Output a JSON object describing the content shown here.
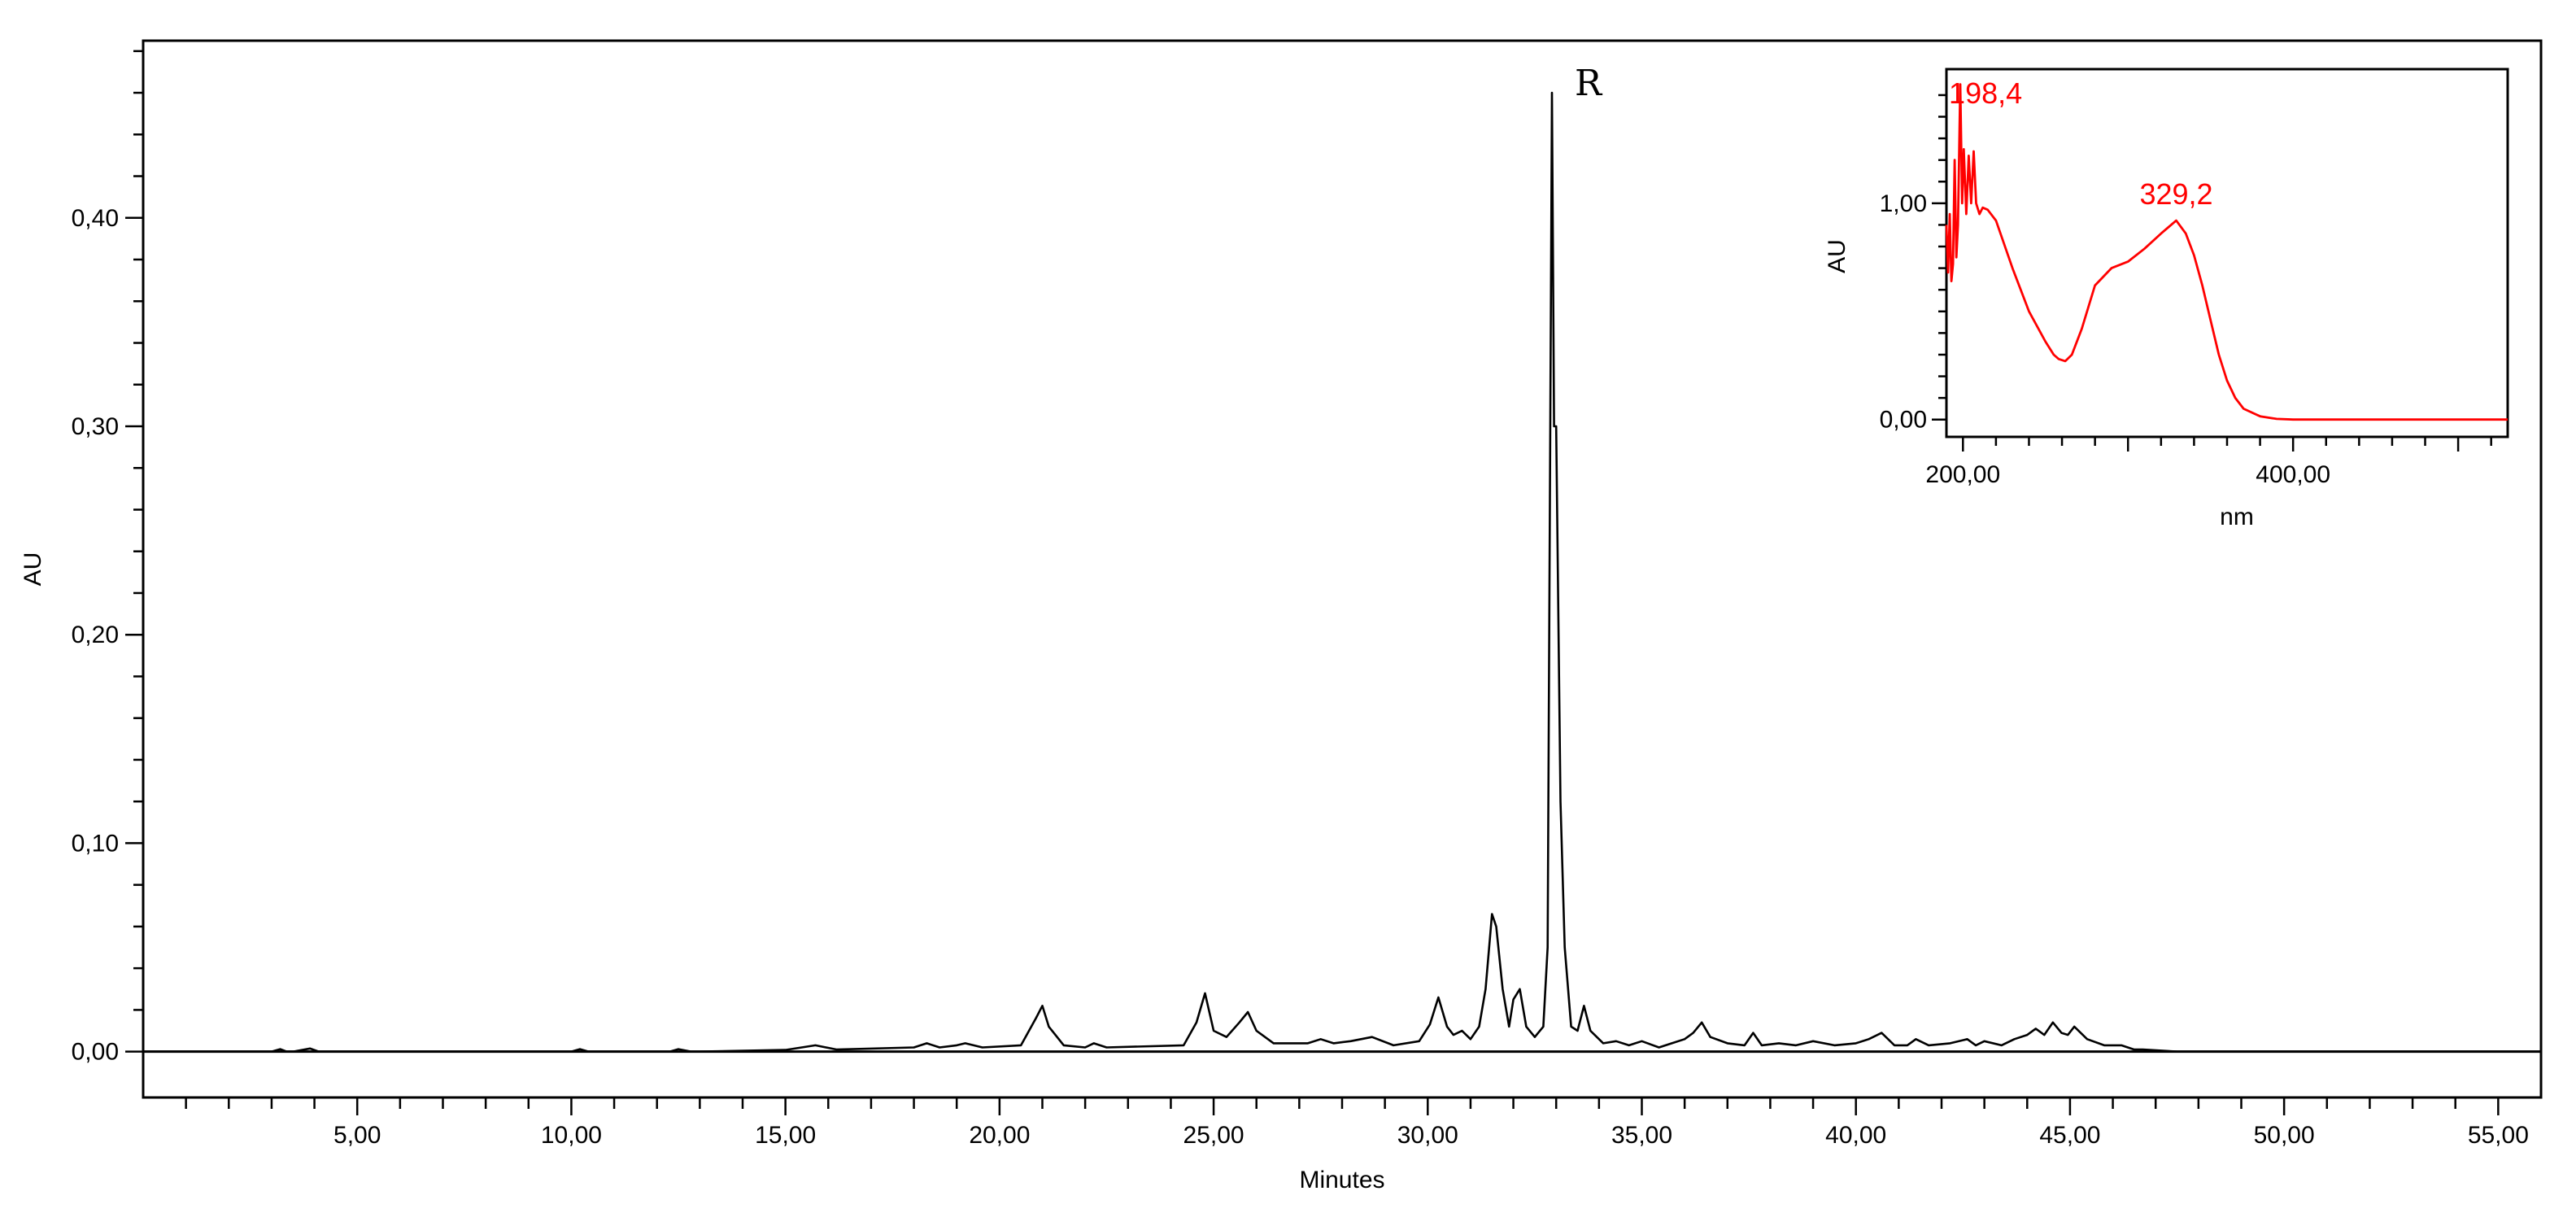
{
  "chart_data": [
    {
      "type": "line",
      "title": "",
      "xlabel": "Minutes",
      "ylabel": "AU",
      "xlim": [
        0,
        56.0
      ],
      "ylim": [
        -0.022,
        0.485
      ],
      "x_ticks": [
        "5,00",
        "10,00",
        "15,00",
        "20,00",
        "25,00",
        "30,00",
        "35,00",
        "40,00",
        "45,00",
        "50,00",
        "55,00"
      ],
      "x_tick_values": [
        5,
        10,
        15,
        20,
        25,
        30,
        35,
        40,
        45,
        50,
        55
      ],
      "y_ticks": [
        "0,00",
        "0,10",
        "0,20",
        "0,30",
        "0,40"
      ],
      "y_tick_values": [
        0.0,
        0.1,
        0.2,
        0.3,
        0.4
      ],
      "grid": false,
      "peak_annotation": {
        "label": "R",
        "x": 32.9,
        "y": 0.462
      },
      "series": [
        {
          "x": [
            0,
            3.0,
            3.2,
            3.35,
            3.5,
            3.9,
            4.1,
            4.3,
            10.0,
            10.2,
            10.4,
            12.3,
            12.5,
            12.8,
            13.0,
            15.0,
            15.7,
            16.2,
            18.0,
            18.3,
            18.6,
            19.0,
            19.2,
            19.6,
            20.5,
            20.85,
            21.0,
            21.15,
            21.5,
            22.0,
            22.2,
            22.5,
            24.3,
            24.6,
            24.8,
            25.0,
            25.3,
            25.6,
            25.8,
            26.0,
            26.4,
            27.2,
            27.5,
            27.8,
            28.2,
            28.7,
            29.2,
            29.8,
            30.05,
            30.25,
            30.45,
            30.6,
            30.8,
            31.0,
            31.2,
            31.35,
            31.5,
            31.6,
            31.75,
            31.9,
            32.0,
            32.15,
            32.3,
            32.5,
            32.7,
            32.8,
            32.85,
            32.9,
            32.95,
            33.0,
            33.1,
            33.2,
            33.35,
            33.5,
            33.65,
            33.8,
            34.1,
            34.4,
            34.7,
            35.0,
            35.4,
            35.7,
            36.0,
            36.2,
            36.4,
            36.6,
            37.0,
            37.4,
            37.6,
            37.8,
            38.2,
            38.6,
            39.0,
            39.5,
            40.0,
            40.3,
            40.6,
            40.9,
            41.2,
            41.4,
            41.7,
            42.2,
            42.6,
            42.8,
            43.0,
            43.4,
            43.7,
            44.0,
            44.2,
            44.4,
            44.6,
            44.8,
            44.95,
            45.1,
            45.4,
            45.8,
            46.2,
            46.5,
            46.7,
            47.5,
            56.0
          ],
          "y": [
            0.0,
            0.0,
            0.0012,
            0.0,
            0.0,
            0.0015,
            0.0,
            0.0,
            0.0,
            0.0012,
            0.0,
            0.0,
            0.0012,
            0.0,
            0.0,
            0.0008,
            0.003,
            0.001,
            0.002,
            0.004,
            0.002,
            0.003,
            0.004,
            0.002,
            0.003,
            0.016,
            0.022,
            0.012,
            0.003,
            0.002,
            0.004,
            0.002,
            0.003,
            0.014,
            0.028,
            0.01,
            0.007,
            0.014,
            0.019,
            0.01,
            0.004,
            0.004,
            0.006,
            0.004,
            0.005,
            0.007,
            0.003,
            0.005,
            0.013,
            0.026,
            0.012,
            0.008,
            0.01,
            0.006,
            0.012,
            0.03,
            0.066,
            0.06,
            0.03,
            0.012,
            0.025,
            0.03,
            0.012,
            0.007,
            0.012,
            0.05,
            0.25,
            0.46,
            0.3,
            0.3,
            0.12,
            0.05,
            0.012,
            0.01,
            0.022,
            0.01,
            0.004,
            0.005,
            0.003,
            0.005,
            0.002,
            0.004,
            0.006,
            0.009,
            0.014,
            0.007,
            0.004,
            0.003,
            0.009,
            0.003,
            0.004,
            0.003,
            0.005,
            0.003,
            0.004,
            0.006,
            0.009,
            0.003,
            0.003,
            0.006,
            0.003,
            0.004,
            0.006,
            0.003,
            0.005,
            0.003,
            0.006,
            0.008,
            0.011,
            0.008,
            0.014,
            0.009,
            0.008,
            0.012,
            0.006,
            0.003,
            0.003,
            0.001,
            0.001,
            0.0,
            0.0
          ]
        }
      ]
    },
    {
      "type": "line",
      "title": "",
      "xlabel": "nm",
      "ylabel": "AU",
      "xlim": [
        190,
        530
      ],
      "ylim": [
        -0.08,
        1.62
      ],
      "x_ticks": [
        "200,00",
        "400,00"
      ],
      "x_tick_values": [
        200,
        400
      ],
      "y_ticks": [
        "0,00",
        "1,00"
      ],
      "y_tick_values": [
        0.0,
        1.0
      ],
      "grid": false,
      "annotations": [
        {
          "label": "198,4",
          "x": 198.4
        },
        {
          "label": "329,2",
          "x": 329.2
        }
      ],
      "series": [
        {
          "x": [
            190,
            191,
            192,
            193,
            194,
            195,
            196,
            197,
            198.4,
            199.5,
            200.5,
            202,
            203.5,
            205,
            206.5,
            208,
            210,
            212,
            215,
            220,
            230,
            240,
            250,
            255,
            258,
            262,
            266,
            272,
            280,
            290,
            300,
            310,
            320,
            329.2,
            335,
            340,
            345,
            350,
            355,
            360,
            365,
            370,
            380,
            390,
            400,
            450,
            530
          ],
          "y": [
            0.9,
            0.68,
            0.95,
            0.64,
            0.72,
            1.2,
            0.75,
            0.9,
            1.55,
            1.0,
            1.25,
            0.95,
            1.22,
            1.0,
            1.24,
            1.0,
            0.95,
            0.98,
            0.97,
            0.92,
            0.7,
            0.5,
            0.36,
            0.3,
            0.28,
            0.27,
            0.3,
            0.42,
            0.62,
            0.7,
            0.73,
            0.79,
            0.86,
            0.92,
            0.86,
            0.76,
            0.62,
            0.46,
            0.3,
            0.18,
            0.1,
            0.05,
            0.015,
            0.003,
            0.0,
            0.0,
            0.0
          ]
        }
      ]
    }
  ]
}
